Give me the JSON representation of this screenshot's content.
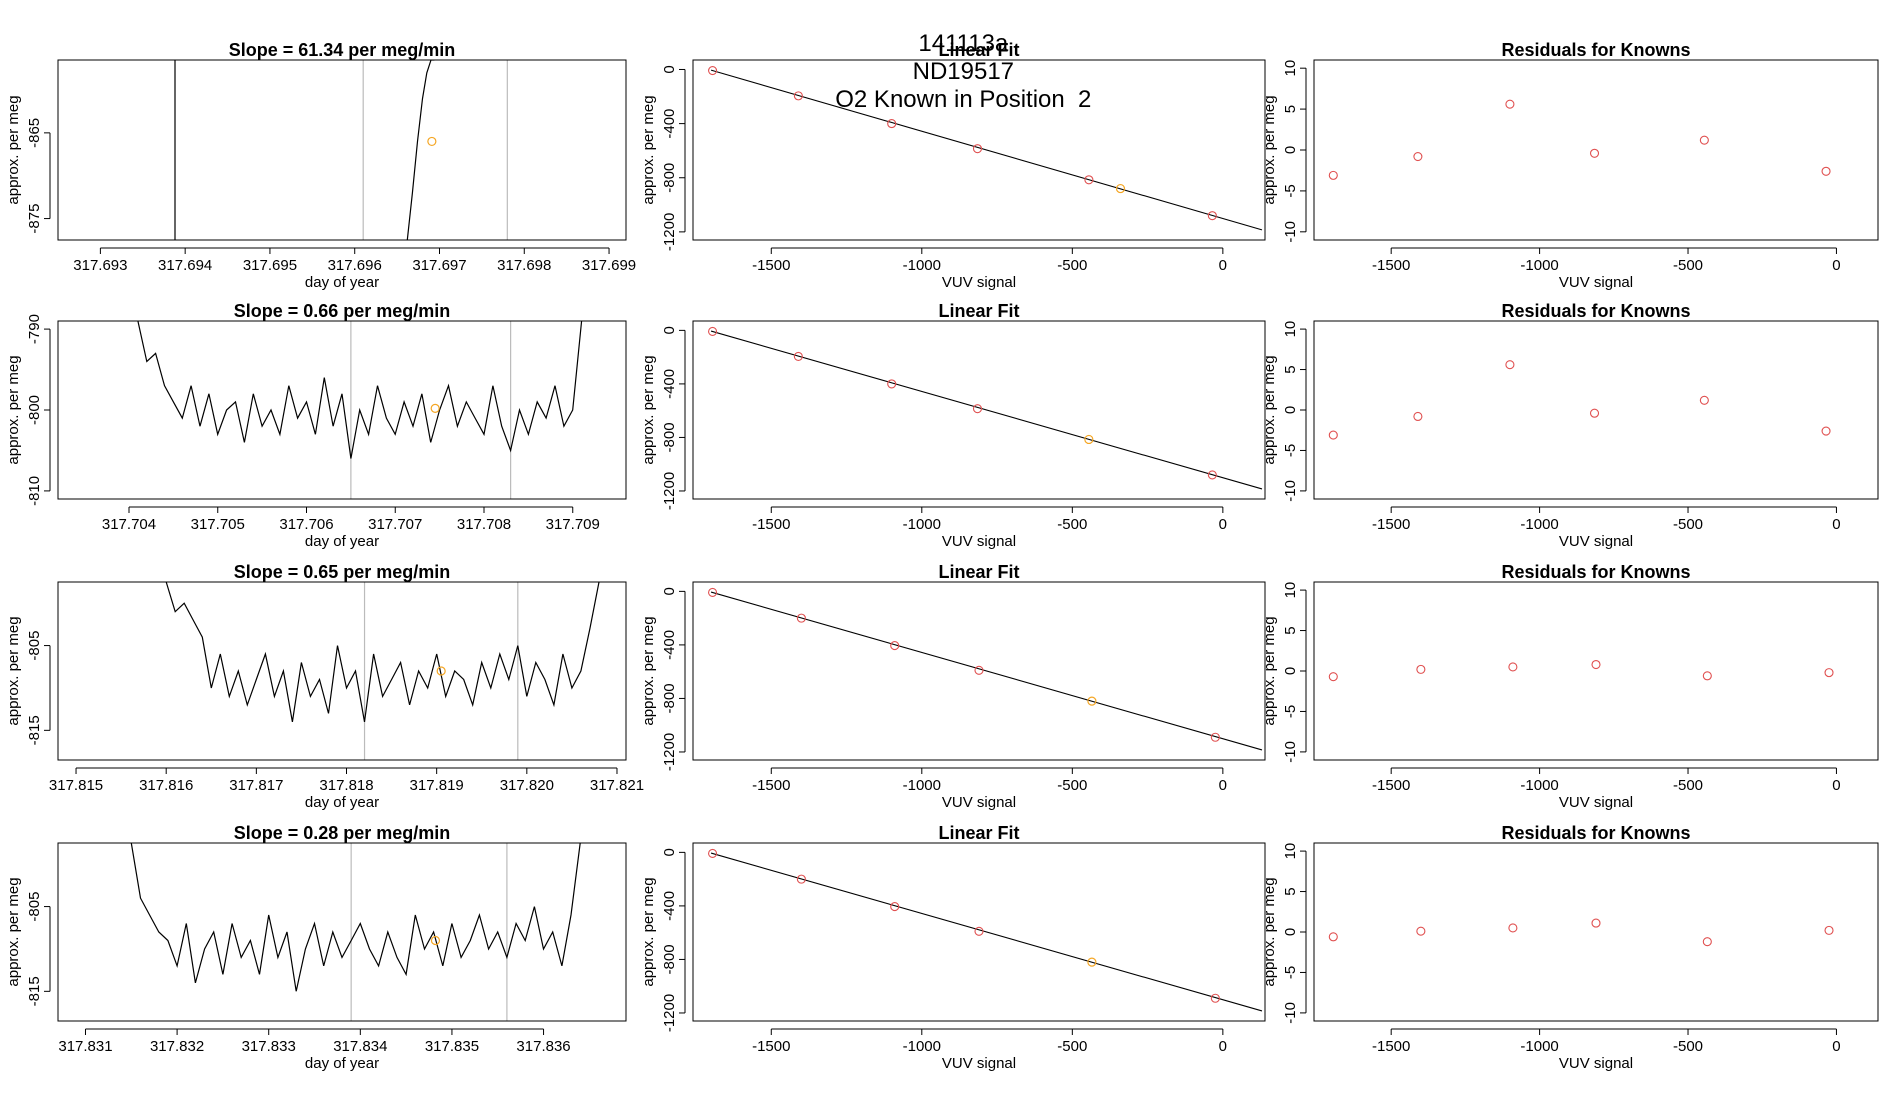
{
  "page_title": {
    "run_id": "141113a",
    "tank_id": "ND19517",
    "description": "O2 Known in Position  2"
  },
  "colors": {
    "trace": "#000000",
    "known_point": "#e05050",
    "highlight_point": "#f5a623",
    "vertical_marker": "#bbbbbb",
    "frame": "#000000"
  },
  "chart_data": [
    {
      "type": "line",
      "row": 0,
      "col": 0,
      "title": "Slope =  61.34  per meg/min",
      "xlabel": "day of year",
      "ylabel": "approx. per meg",
      "xlim": [
        317.6925,
        317.6992
      ],
      "ylim": [
        -877.5,
        -856.5
      ],
      "xticks": [
        "317.693",
        "317.694",
        "317.695",
        "317.696",
        "317.697",
        "317.698",
        "317.699"
      ],
      "xtick_values": [
        317.693,
        317.694,
        317.695,
        317.696,
        317.697,
        317.698,
        317.699
      ],
      "yticks": [
        "-875",
        "-865"
      ],
      "ytick_values": [
        -875,
        -865
      ],
      "vlines": [
        317.6961,
        317.6978
      ],
      "series": [
        {
          "x": [
            317.69388,
            317.69388
          ],
          "y": [
            -856.5,
            -877.5
          ]
        },
        {
          "x": [
            317.69662,
            317.69668,
            317.69674,
            317.6968,
            317.69685,
            317.6969,
            317.69694
          ],
          "y": [
            -877.5,
            -872,
            -866,
            -861,
            -858,
            -856.5,
            -856.5
          ]
        }
      ],
      "highlight": {
        "x": 317.69691,
        "y": -866.0
      }
    },
    {
      "type": "line",
      "row": 1,
      "col": 0,
      "title": "Slope =  0.66  per meg/min",
      "xlabel": "day of year",
      "ylabel": "approx. per meg",
      "xlim": [
        317.7032,
        317.7096
      ],
      "ylim": [
        -811,
        -789
      ],
      "xticks": [
        "317.704",
        "317.705",
        "317.706",
        "317.707",
        "317.708",
        "317.709"
      ],
      "xtick_values": [
        317.704,
        317.705,
        317.706,
        317.707,
        317.708,
        317.709
      ],
      "yticks": [
        "-790",
        "-800",
        "-810"
      ],
      "ytick_values": [
        -790,
        -800,
        -810
      ],
      "vlines": [
        317.7065,
        317.7083
      ],
      "series": [
        {
          "x": [
            317.7041,
            317.7042,
            317.7043,
            317.7044,
            317.7045,
            317.7046,
            317.7047,
            317.7048,
            317.7049,
            317.705,
            317.7051,
            317.7052,
            317.7053,
            317.7054,
            317.7055,
            317.7056,
            317.7057,
            317.7058,
            317.7059,
            317.706,
            317.7061,
            317.7062,
            317.7063,
            317.7064,
            317.7065,
            317.7066,
            317.7067,
            317.7068,
            317.7069,
            317.707,
            317.7071,
            317.7072,
            317.7073,
            317.7074,
            317.7075,
            317.7076,
            317.7077,
            317.7078,
            317.7079,
            317.708,
            317.7081,
            317.7082,
            317.7083,
            317.7084,
            317.7085,
            317.7086,
            317.7087,
            317.7088,
            317.7089,
            317.709,
            317.7091
          ],
          "y": [
            -789,
            -794,
            -793,
            -797,
            -799,
            -801,
            -797,
            -802,
            -798,
            -803,
            -800,
            -799,
            -804,
            -798,
            -802,
            -800,
            -803,
            -797,
            -801,
            -799,
            -803,
            -796,
            -802,
            -798,
            -806,
            -800,
            -803,
            -797,
            -801,
            -803,
            -799,
            -802,
            -798,
            -804,
            -800,
            -797,
            -802,
            -799,
            -801,
            -803,
            -797,
            -802,
            -805,
            -800,
            -803,
            -799,
            -801,
            -797,
            -802,
            -800,
            -789
          ]
        }
      ],
      "highlight": {
        "x": 317.70745,
        "y": -799.8
      }
    },
    {
      "type": "line",
      "row": 2,
      "col": 0,
      "title": "Slope =  0.65  per meg/min",
      "xlabel": "day of year",
      "ylabel": "approx. per meg",
      "xlim": [
        317.8148,
        317.8211
      ],
      "ylim": [
        -818.5,
        -797.5
      ],
      "xticks": [
        "317.815",
        "317.816",
        "317.817",
        "317.818",
        "317.819",
        "317.820",
        "317.821"
      ],
      "xtick_values": [
        317.815,
        317.816,
        317.817,
        317.818,
        317.819,
        317.82,
        317.821
      ],
      "yticks": [
        "-805",
        "-815"
      ],
      "ytick_values": [
        -805,
        -815
      ],
      "vlines": [
        317.8182,
        317.8199
      ],
      "series": [
        {
          "x": [
            317.816,
            317.8161,
            317.8162,
            317.8163,
            317.8164,
            317.8165,
            317.8166,
            317.8167,
            317.8168,
            317.8169,
            317.817,
            317.8171,
            317.8172,
            317.8173,
            317.8174,
            317.8175,
            317.8176,
            317.8177,
            317.8178,
            317.8179,
            317.818,
            317.8181,
            317.8182,
            317.8183,
            317.8184,
            317.8185,
            317.8186,
            317.8187,
            317.8188,
            317.8189,
            317.819,
            317.8191,
            317.8192,
            317.8193,
            317.8194,
            317.8195,
            317.8196,
            317.8197,
            317.8198,
            317.8199,
            317.82,
            317.8201,
            317.8202,
            317.8203,
            317.8204,
            317.8205,
            317.8206,
            317.8207,
            317.8208
          ],
          "y": [
            -797.5,
            -801,
            -800,
            -802,
            -804,
            -810,
            -806,
            -811,
            -808,
            -812,
            -809,
            -806,
            -811,
            -808,
            -814,
            -807,
            -811,
            -809,
            -813,
            -805,
            -810,
            -808,
            -814,
            -806,
            -811,
            -809,
            -807,
            -812,
            -808,
            -810,
            -806,
            -811,
            -808,
            -809,
            -812,
            -807,
            -810,
            -806,
            -809,
            -805,
            -811,
            -807,
            -809,
            -812,
            -806,
            -810,
            -808,
            -803,
            -797.5
          ]
        }
      ],
      "highlight": {
        "x": 317.81905,
        "y": -808.0
      }
    },
    {
      "type": "line",
      "row": 3,
      "col": 0,
      "title": "Slope =  0.28  per meg/min",
      "xlabel": "day of year",
      "ylabel": "approx. per meg",
      "xlim": [
        317.8307,
        317.8369
      ],
      "ylim": [
        -818.5,
        -797.5
      ],
      "xticks": [
        "317.831",
        "317.832",
        "317.833",
        "317.834",
        "317.835",
        "317.836"
      ],
      "xtick_values": [
        317.831,
        317.832,
        317.833,
        317.834,
        317.835,
        317.836
      ],
      "yticks": [
        "-805",
        "-815"
      ],
      "ytick_values": [
        -805,
        -815
      ],
      "vlines": [
        317.8339,
        317.8356
      ],
      "series": [
        {
          "x": [
            317.8315,
            317.8316,
            317.8317,
            317.8318,
            317.8319,
            317.832,
            317.8321,
            317.8322,
            317.8323,
            317.8324,
            317.8325,
            317.8326,
            317.8327,
            317.8328,
            317.8329,
            317.833,
            317.8331,
            317.8332,
            317.8333,
            317.8334,
            317.8335,
            317.8336,
            317.8337,
            317.8338,
            317.8339,
            317.834,
            317.8341,
            317.8342,
            317.8343,
            317.8344,
            317.8345,
            317.8346,
            317.8347,
            317.8348,
            317.8349,
            317.835,
            317.8351,
            317.8352,
            317.8353,
            317.8354,
            317.8355,
            317.8356,
            317.8357,
            317.8358,
            317.8359,
            317.836,
            317.8361,
            317.8362,
            317.8363,
            317.8364
          ],
          "y": [
            -797.5,
            -804,
            -806,
            -808,
            -809,
            -812,
            -807,
            -814,
            -810,
            -808,
            -813,
            -807,
            -811,
            -809,
            -813,
            -806,
            -811,
            -808,
            -815,
            -810,
            -807,
            -812,
            -808,
            -811,
            -809,
            -807,
            -810,
            -812,
            -808,
            -811,
            -813,
            -806,
            -810,
            -808,
            -812,
            -807,
            -811,
            -809,
            -806,
            -810,
            -808,
            -811,
            -807,
            -809,
            -805,
            -810,
            -808,
            -812,
            -806,
            -797.5
          ]
        }
      ],
      "highlight": {
        "x": 317.83482,
        "y": -809.0
      }
    },
    {
      "type": "scatter",
      "row": 0,
      "col": 1,
      "title": "Linear Fit",
      "xlabel": "VUV signal",
      "ylabel": "approx. per meg",
      "xlim": [
        -1760,
        140
      ],
      "ylim": [
        -1260,
        70
      ],
      "xticks": [
        "-1500",
        "-1000",
        "-500",
        "0"
      ],
      "xtick_values": [
        -1500,
        -1000,
        -500,
        0
      ],
      "yticks": [
        "0",
        "-400",
        "-800",
        "-1200"
      ],
      "ytick_values": [
        0,
        -400,
        -800,
        -1200
      ],
      "fit_line": {
        "x": [
          -1700,
          130
        ],
        "y": [
          -5,
          -1185
        ]
      },
      "points": {
        "x": [
          -1695,
          -1410,
          -1100,
          -815,
          -445,
          -35
        ],
        "y": [
          -8,
          -195,
          -400,
          -585,
          -815,
          -1080
        ]
      },
      "highlight": {
        "x": -340,
        "y": -880
      }
    },
    {
      "type": "scatter",
      "row": 1,
      "col": 1,
      "title": "Linear Fit",
      "xlabel": "VUV signal",
      "ylabel": "approx. per meg",
      "xlim": [
        -1760,
        140
      ],
      "ylim": [
        -1260,
        70
      ],
      "xticks": [
        "-1500",
        "-1000",
        "-500",
        "0"
      ],
      "xtick_values": [
        -1500,
        -1000,
        -500,
        0
      ],
      "yticks": [
        "0",
        "-400",
        "-800",
        "-1200"
      ],
      "ytick_values": [
        0,
        -400,
        -800,
        -1200
      ],
      "fit_line": {
        "x": [
          -1700,
          130
        ],
        "y": [
          -5,
          -1185
        ]
      },
      "points": {
        "x": [
          -1695,
          -1410,
          -1100,
          -815,
          -35
        ],
        "y": [
          -8,
          -195,
          -400,
          -585,
          -1080
        ]
      },
      "highlight": {
        "x": -445,
        "y": -815
      }
    },
    {
      "type": "scatter",
      "row": 2,
      "col": 1,
      "title": "Linear Fit",
      "xlabel": "VUV signal",
      "ylabel": "approx. per meg",
      "xlim": [
        -1760,
        140
      ],
      "ylim": [
        -1260,
        70
      ],
      "xticks": [
        "-1500",
        "-1000",
        "-500",
        "0"
      ],
      "xtick_values": [
        -1500,
        -1000,
        -500,
        0
      ],
      "yticks": [
        "0",
        "-400",
        "-800",
        "-1200"
      ],
      "ytick_values": [
        0,
        -400,
        -800,
        -1200
      ],
      "fit_line": {
        "x": [
          -1700,
          130
        ],
        "y": [
          -5,
          -1185
        ]
      },
      "points": {
        "x": [
          -1695,
          -1400,
          -1090,
          -810,
          -25
        ],
        "y": [
          -8,
          -200,
          -405,
          -590,
          -1090
        ]
      },
      "highlight": {
        "x": -435,
        "y": -820
      }
    },
    {
      "type": "scatter",
      "row": 3,
      "col": 1,
      "title": "Linear Fit",
      "xlabel": "VUV signal",
      "ylabel": "approx. per meg",
      "xlim": [
        -1760,
        140
      ],
      "ylim": [
        -1260,
        70
      ],
      "xticks": [
        "-1500",
        "-1000",
        "-500",
        "0"
      ],
      "xtick_values": [
        -1500,
        -1000,
        -500,
        0
      ],
      "yticks": [
        "0",
        "-400",
        "-800",
        "-1200"
      ],
      "ytick_values": [
        0,
        -400,
        -800,
        -1200
      ],
      "fit_line": {
        "x": [
          -1700,
          130
        ],
        "y": [
          -5,
          -1185
        ]
      },
      "points": {
        "x": [
          -1695,
          -1400,
          -1090,
          -810,
          -25
        ],
        "y": [
          -8,
          -200,
          -405,
          -590,
          -1090
        ]
      },
      "highlight": {
        "x": -435,
        "y": -820
      }
    },
    {
      "type": "scatter",
      "row": 0,
      "col": 2,
      "title": "Residuals for Knowns",
      "xlabel": "VUV signal",
      "ylabel": "approx. per meg",
      "xlim": [
        -1760,
        140
      ],
      "ylim": [
        -11,
        11
      ],
      "xticks": [
        "-1500",
        "-1000",
        "-500",
        "0"
      ],
      "xtick_values": [
        -1500,
        -1000,
        -500,
        0
      ],
      "yticks": [
        "10",
        "5",
        "0",
        "-5",
        "-10"
      ],
      "ytick_values": [
        10,
        5,
        0,
        -5,
        -10
      ],
      "points": {
        "x": [
          -1695,
          -1410,
          -1100,
          -815,
          -445,
          -35
        ],
        "y": [
          -3.1,
          -0.8,
          5.6,
          -0.4,
          1.2,
          -2.6
        ]
      }
    },
    {
      "type": "scatter",
      "row": 1,
      "col": 2,
      "title": "Residuals for Knowns",
      "xlabel": "VUV signal",
      "ylabel": "approx. per meg",
      "xlim": [
        -1760,
        140
      ],
      "ylim": [
        -11,
        11
      ],
      "xticks": [
        "-1500",
        "-1000",
        "-500",
        "0"
      ],
      "xtick_values": [
        -1500,
        -1000,
        -500,
        0
      ],
      "yticks": [
        "10",
        "5",
        "0",
        "-5",
        "-10"
      ],
      "ytick_values": [
        10,
        5,
        0,
        -5,
        -10
      ],
      "points": {
        "x": [
          -1695,
          -1410,
          -1100,
          -815,
          -445,
          -35
        ],
        "y": [
          -3.1,
          -0.8,
          5.6,
          -0.4,
          1.2,
          -2.6
        ]
      }
    },
    {
      "type": "scatter",
      "row": 2,
      "col": 2,
      "title": "Residuals for Knowns",
      "xlabel": "VUV signal",
      "ylabel": "approx. per meg",
      "xlim": [
        -1760,
        140
      ],
      "ylim": [
        -11,
        11
      ],
      "xticks": [
        "-1500",
        "-1000",
        "-500",
        "0"
      ],
      "xtick_values": [
        -1500,
        -1000,
        -500,
        0
      ],
      "yticks": [
        "10",
        "5",
        "0",
        "-5",
        "-10"
      ],
      "ytick_values": [
        10,
        5,
        0,
        -5,
        -10
      ],
      "points": {
        "x": [
          -1695,
          -1400,
          -1090,
          -810,
          -435,
          -25
        ],
        "y": [
          -0.7,
          0.2,
          0.5,
          0.8,
          -0.6,
          -0.2
        ]
      }
    },
    {
      "type": "scatter",
      "row": 3,
      "col": 2,
      "title": "Residuals for Knowns",
      "xlabel": "VUV signal",
      "ylabel": "approx. per meg",
      "xlim": [
        -1760,
        140
      ],
      "ylim": [
        -11,
        11
      ],
      "xticks": [
        "-1500",
        "-1000",
        "-500",
        "0"
      ],
      "xtick_values": [
        -1500,
        -1000,
        -500,
        0
      ],
      "yticks": [
        "10",
        "5",
        "0",
        "-5",
        "-10"
      ],
      "ytick_values": [
        10,
        5,
        0,
        -5,
        -10
      ],
      "points": {
        "x": [
          -1695,
          -1400,
          -1090,
          -810,
          -435,
          -25
        ],
        "y": [
          -0.6,
          0.1,
          0.5,
          1.1,
          -1.2,
          0.2
        ]
      }
    }
  ]
}
